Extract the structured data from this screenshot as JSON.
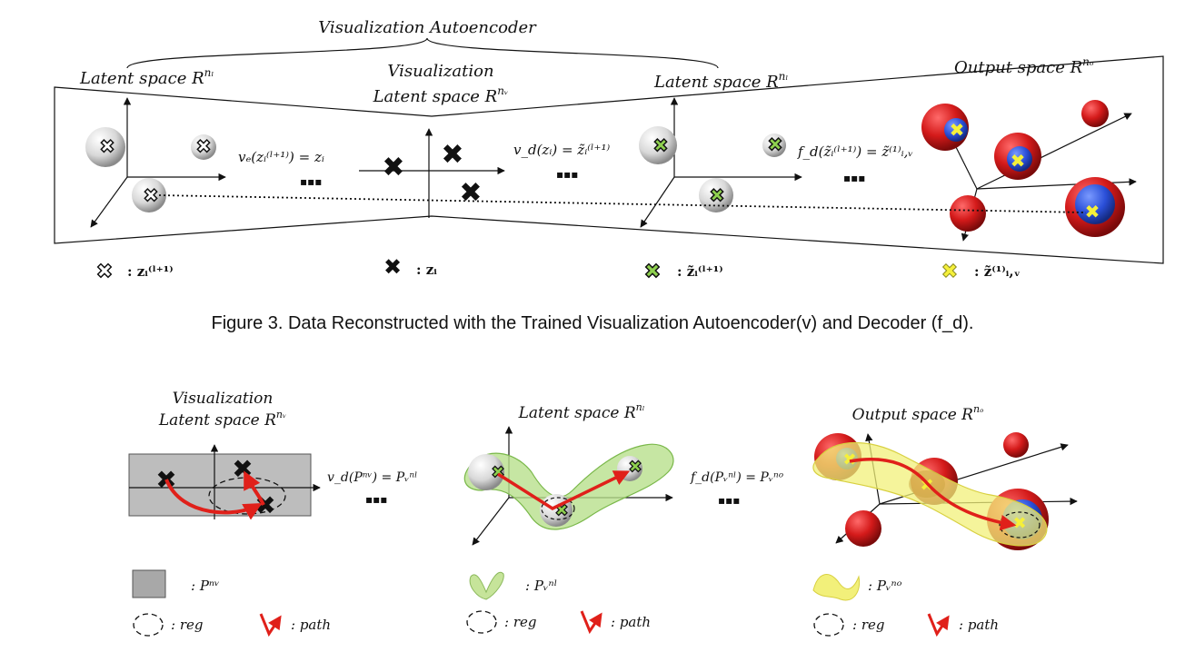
{
  "figure3": {
    "title": "Visualization Autoencoder",
    "latent_left": "Latent space R",
    "latent_left_sup": "nₗ",
    "vis_label_1": "Visualization",
    "vis_label_2": "Latent space R",
    "vis_sup": "nᵥ",
    "latent_right": "Latent space R",
    "latent_right_sup": "nₗ",
    "output": "Output space R",
    "output_sup": "nₒ",
    "eq_encoder": "vₑ(zᵢ⁽ˡ⁺¹⁾) = zᵢ",
    "eq_decoder": "v_d(zᵢ) = z̃ᵢ⁽ˡ⁺¹⁾",
    "eq_fd": "f_d(z̃ᵢ⁽ˡ⁺¹⁾) = z̃⁽¹⁾ᵢ,ᵥ",
    "dots": "▪▪▪",
    "legend": [
      {
        "icon": "white-cross",
        "text": ": zᵢ⁽ˡ⁺¹⁾"
      },
      {
        "icon": "black-cross",
        "text": ": zᵢ"
      },
      {
        "icon": "green-cross",
        "text": ": z̃ᵢ⁽ˡ⁺¹⁾"
      },
      {
        "icon": "yellow-cross",
        "text": ": z̃⁽¹⁾ᵢ,ᵥ"
      }
    ],
    "caption": "Figure 3. Data Reconstructed with the Trained Visualization Autoencoder(v) and Decoder (f_d)."
  },
  "figure4": {
    "vis_1": "Visualization",
    "vis_2": "Latent space R",
    "vis_sup": "nᵥ",
    "latent": "Latent space R",
    "latent_sup": "nₗ",
    "output": "Output space R",
    "output_sup": "nₒ",
    "eq_vd": "v_d(Pⁿᵛ) = Pᵥⁿˡ",
    "eq_fd": "f_d(Pᵥⁿˡ) = Pᵥⁿᵒ",
    "dots": "▪▪▪",
    "legend": [
      {
        "shape": "gray-box",
        "text": ": Pⁿᵛ"
      },
      {
        "shape": "green-blob",
        "text": ": Pᵥⁿˡ"
      },
      {
        "shape": "yellow-blob",
        "text": ": Pᵥⁿᵒ"
      }
    ],
    "reg_label": ": reg",
    "path_label": ": path"
  },
  "colors": {
    "red_sphere": "#d41a1a",
    "blue_sphere": "#2a4fd8",
    "yellow_cross": "#f5f03a",
    "green_cross": "#8fd14f",
    "green_region": "#b8e08c",
    "yellow_region": "#f2f07a",
    "gray_box": "#bdbdbd",
    "path": "#e0201a"
  }
}
